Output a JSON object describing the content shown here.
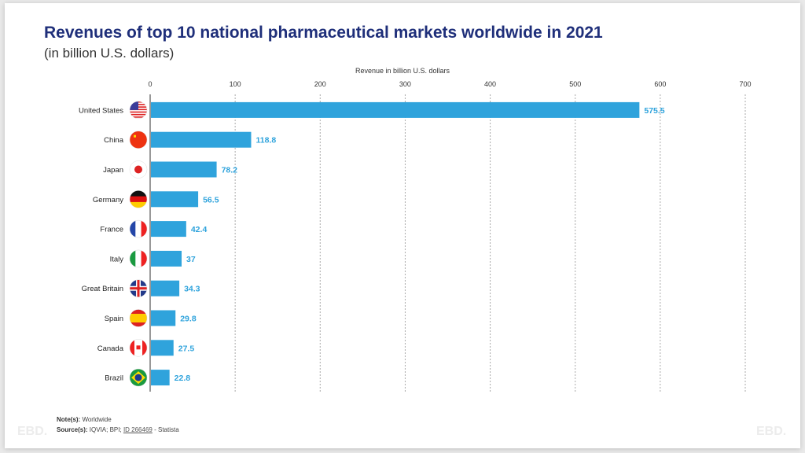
{
  "title": "Revenues of top 10 national pharmaceutical markets worldwide in 2021",
  "subtitle": "(in billion U.S. dollars)",
  "footer": {
    "note_label": "Note(s):",
    "note": "Worldwide",
    "source_label": "Source(s):",
    "source": "IQVIA; BPI;",
    "source_id": "ID 266469",
    "source_suffix": "- Statista"
  },
  "watermark": "EBD.",
  "chart_data": {
    "type": "bar",
    "orientation": "horizontal",
    "xlabel": "Revenue in billion U.S. dollars",
    "xlim": [
      0,
      700
    ],
    "ticks": [
      0,
      100,
      200,
      300,
      400,
      500,
      600,
      700
    ],
    "grid": true,
    "bar_color": "#2fa3dc",
    "label_color": "#2fa3dc",
    "categories": [
      "United States",
      "China",
      "Japan",
      "Germany",
      "France",
      "Italy",
      "Great Britain",
      "Spain",
      "Canada",
      "Brazil"
    ],
    "values": [
      575.5,
      118.8,
      78.2,
      56.5,
      42.4,
      37,
      34.3,
      29.8,
      27.5,
      22.8
    ],
    "flag_icons": [
      "us-flag-icon",
      "china-flag-icon",
      "japan-flag-icon",
      "germany-flag-icon",
      "france-flag-icon",
      "italy-flag-icon",
      "uk-flag-icon",
      "spain-flag-icon",
      "canada-flag-icon",
      "brazil-flag-icon"
    ]
  }
}
